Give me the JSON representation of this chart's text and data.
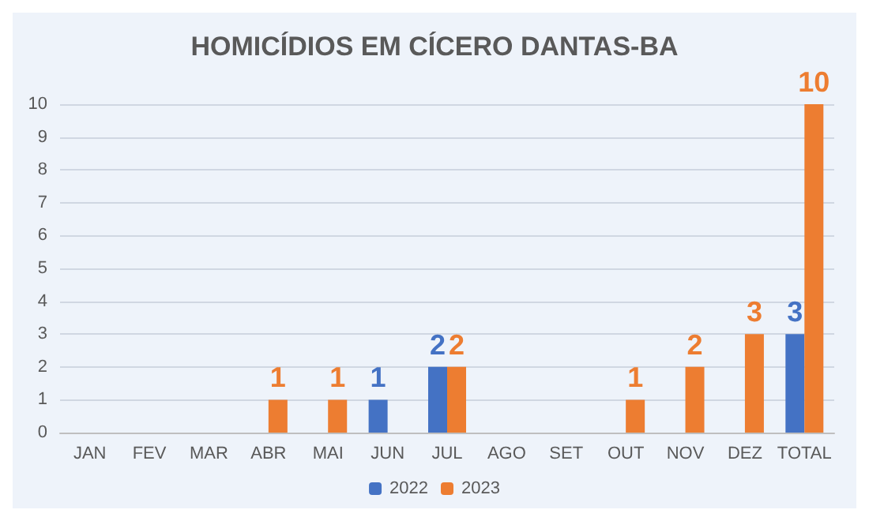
{
  "chart_data": {
    "type": "bar",
    "title": "HOMICÍDIOS EM CÍCERO DANTAS-BA",
    "categories": [
      "JAN",
      "FEV",
      "MAR",
      "ABR",
      "MAI",
      "JUN",
      "JUL",
      "AGO",
      "SET",
      "OUT",
      "NOV",
      "DEZ",
      "TOTAL"
    ],
    "series": [
      {
        "name": "2022",
        "color": "#4472c4",
        "values": [
          0,
          0,
          0,
          0,
          0,
          1,
          2,
          0,
          0,
          0,
          0,
          0,
          3
        ],
        "value_labels": [
          null,
          null,
          null,
          null,
          null,
          "1",
          "2",
          null,
          null,
          null,
          null,
          null,
          "3"
        ]
      },
      {
        "name": "2023",
        "color": "#ed7d31",
        "values": [
          0,
          0,
          0,
          1,
          1,
          0,
          2,
          0,
          0,
          1,
          2,
          3,
          10
        ],
        "value_labels": [
          null,
          null,
          null,
          "1",
          "1",
          null,
          "2",
          null,
          null,
          "1",
          "2",
          "3",
          "10"
        ]
      }
    ],
    "ylim": [
      0,
      10
    ],
    "yticks": [
      0,
      1,
      2,
      3,
      4,
      5,
      6,
      7,
      8,
      9,
      10
    ],
    "grid": "y",
    "legend": "bottom"
  }
}
